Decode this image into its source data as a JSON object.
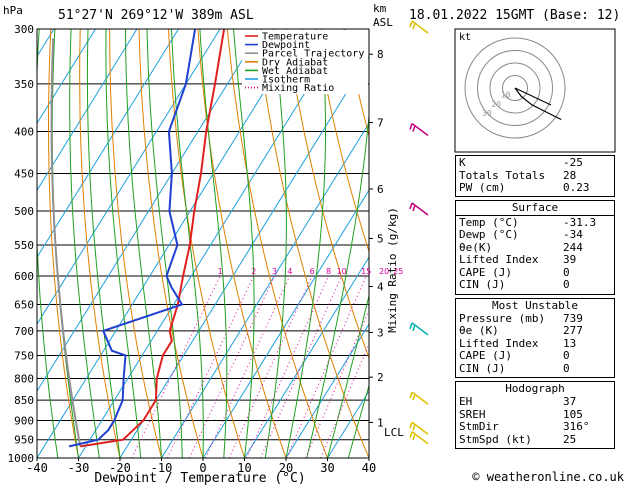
{
  "header": {
    "hpa_unit": "hPa",
    "location": "51°27'N  269°12'W  389m  ASL",
    "km_unit": "km",
    "asl_unit": "ASL",
    "datetime": "18.01.2022  15GMT  (Base: 12)"
  },
  "colors": {
    "temperature": "#e02020",
    "dewpoint": "#2040d0",
    "parcel": "#909090",
    "dry_adiabat": "#e08000",
    "wet_adiabat": "#20a020",
    "isotherm": "#20a0e0",
    "mixing_ratio": "#e000a0",
    "wind_high": "#c00080",
    "wind_mid": "#00b0b0",
    "wind_low": "#e0c000"
  },
  "legend": [
    {
      "label": "Temperature",
      "color": "#e02020",
      "style": "solid"
    },
    {
      "label": "Dewpoint",
      "color": "#2040d0",
      "style": "solid"
    },
    {
      "label": "Parcel Trajectory",
      "color": "#909090",
      "style": "solid"
    },
    {
      "label": "Dry Adiabat",
      "color": "#e08000",
      "style": "solid"
    },
    {
      "label": "Wet Adiabat",
      "color": "#20a020",
      "style": "solid"
    },
    {
      "label": "Isotherm",
      "color": "#20a0e0",
      "style": "solid"
    },
    {
      "label": "Mixing Ratio",
      "color": "#e000a0",
      "style": "dotted"
    }
  ],
  "chart_data": {
    "type": "skew-t",
    "xlabel": "Dewpoint / Temperature (°C)",
    "ylabel_right": "Mixing Ratio (g/kg)",
    "xlim": [
      -40,
      40
    ],
    "ylim_hpa": [
      1000,
      300
    ],
    "x_ticks": [
      -40,
      -30,
      -20,
      -10,
      0,
      10,
      20,
      30,
      40
    ],
    "pressure_ticks": [
      300,
      350,
      400,
      450,
      500,
      550,
      600,
      650,
      700,
      750,
      800,
      850,
      900,
      950,
      1000
    ],
    "km_ticks": [
      {
        "label": "8",
        "p": 322
      },
      {
        "label": "7",
        "p": 390
      },
      {
        "label": "6",
        "p": 470
      },
      {
        "label": "5",
        "p": 540
      },
      {
        "label": "4",
        "p": 618
      },
      {
        "label": "3",
        "p": 703
      },
      {
        "label": "2",
        "p": 797
      },
      {
        "label": "1",
        "p": 905
      }
    ],
    "lcl": {
      "label": "LCL",
      "p": 930
    },
    "mixing_ratio_labels": [
      "1",
      "2",
      "3",
      "4",
      "6",
      "8",
      "10",
      "15",
      "20",
      "25"
    ],
    "mixing_ratio_values": [
      1,
      2,
      3,
      4,
      6,
      8,
      10,
      15,
      20,
      25
    ],
    "temperature": [
      {
        "p": 968,
        "t": -31.3
      },
      {
        "p": 950,
        "t": -22
      },
      {
        "p": 925,
        "t": -21
      },
      {
        "p": 900,
        "t": -20
      },
      {
        "p": 850,
        "t": -20
      },
      {
        "p": 800,
        "t": -23
      },
      {
        "p": 750,
        "t": -25
      },
      {
        "p": 720,
        "t": -25
      },
      {
        "p": 700,
        "t": -27
      },
      {
        "p": 650,
        "t": -29
      },
      {
        "p": 600,
        "t": -32
      },
      {
        "p": 550,
        "t": -35
      },
      {
        "p": 500,
        "t": -39
      },
      {
        "p": 450,
        "t": -43
      },
      {
        "p": 400,
        "t": -48
      },
      {
        "p": 350,
        "t": -53
      },
      {
        "p": 300,
        "t": -59
      }
    ],
    "dewpoint": [
      {
        "p": 968,
        "t": -34
      },
      {
        "p": 950,
        "t": -28
      },
      {
        "p": 925,
        "t": -27
      },
      {
        "p": 900,
        "t": -27
      },
      {
        "p": 850,
        "t": -28
      },
      {
        "p": 800,
        "t": -31
      },
      {
        "p": 750,
        "t": -34
      },
      {
        "p": 740,
        "t": -38
      },
      {
        "p": 700,
        "t": -43
      },
      {
        "p": 650,
        "t": -28
      },
      {
        "p": 620,
        "t": -33
      },
      {
        "p": 600,
        "t": -36
      },
      {
        "p": 550,
        "t": -38
      },
      {
        "p": 500,
        "t": -45
      },
      {
        "p": 450,
        "t": -50
      },
      {
        "p": 400,
        "t": -57
      },
      {
        "p": 350,
        "t": -60
      },
      {
        "p": 300,
        "t": -66
      }
    ],
    "wind_barbs": [
      {
        "p": 300,
        "color_key": "wind_low"
      },
      {
        "p": 400,
        "color_key": "wind_high"
      },
      {
        "p": 500,
        "color_key": "wind_high"
      },
      {
        "p": 700,
        "color_key": "wind_mid"
      },
      {
        "p": 850,
        "color_key": "wind_low"
      },
      {
        "p": 925,
        "color_key": "wind_low"
      },
      {
        "p": 950,
        "color_key": "wind_low"
      }
    ]
  },
  "hodograph": {
    "unit_label": "kt",
    "ring_labels": [
      "10",
      "20",
      "30"
    ],
    "trace_kt": [
      [
        0,
        0
      ],
      [
        3,
        -4
      ],
      [
        8,
        -8
      ],
      [
        14,
        -11
      ],
      [
        22,
        -15
      ]
    ]
  },
  "indices": {
    "top": [
      {
        "label": "K",
        "value": "-25"
      },
      {
        "label": "Totals Totals",
        "value": "28"
      },
      {
        "label": "PW (cm)",
        "value": "0.23"
      }
    ],
    "surface": {
      "title": "Surface",
      "rows": [
        {
          "label": "Temp (°C)",
          "value": "-31.3"
        },
        {
          "label": "Dewp (°C)",
          "value": "-34"
        },
        {
          "label": "θe(K)",
          "value": "244"
        },
        {
          "label": "Lifted Index",
          "value": "39"
        },
        {
          "label": "CAPE (J)",
          "value": "0"
        },
        {
          "label": "CIN (J)",
          "value": "0"
        }
      ]
    },
    "most_unstable": {
      "title": "Most Unstable",
      "rows": [
        {
          "label": "Pressure (mb)",
          "value": "739"
        },
        {
          "label": "θe (K)",
          "value": "277"
        },
        {
          "label": "Lifted Index",
          "value": "13"
        },
        {
          "label": "CAPE (J)",
          "value": "0"
        },
        {
          "label": "CIN (J)",
          "value": "0"
        }
      ]
    },
    "hodograph": {
      "title": "Hodograph",
      "rows": [
        {
          "label": "EH",
          "value": "37"
        },
        {
          "label": "SREH",
          "value": "105"
        },
        {
          "label": "StmDir",
          "value": "316°"
        },
        {
          "label": "StmSpd (kt)",
          "value": "25"
        }
      ]
    }
  },
  "footer": {
    "copyright": "© weatheronline.co.uk"
  }
}
